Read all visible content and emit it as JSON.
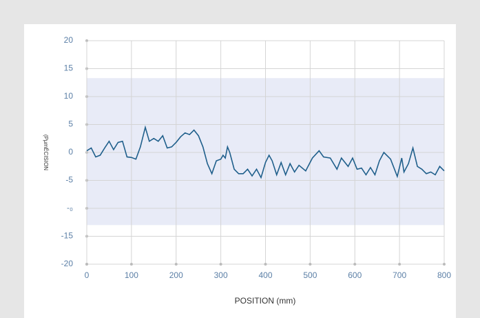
{
  "chart_data": {
    "type": "line",
    "y_label": "(PµmÉCISION",
    "x_label": "POSITION (mm)",
    "x": [
      0,
      10,
      20,
      30,
      40,
      50,
      60,
      70,
      80,
      90,
      100,
      110,
      120,
      131,
      140,
      150,
      160,
      170,
      180,
      190,
      200,
      210,
      220,
      230,
      240,
      250,
      260,
      270,
      280,
      290,
      300,
      305,
      310,
      315,
      320,
      330,
      340,
      350,
      360,
      370,
      380,
      390,
      400,
      408,
      415,
      425,
      435,
      445,
      455,
      465,
      475,
      490,
      505,
      520,
      530,
      545,
      560,
      570,
      585,
      595,
      605,
      615,
      625,
      635,
      645,
      655,
      665,
      680,
      695,
      705,
      710,
      720,
      730,
      740,
      750,
      760,
      770,
      780,
      790,
      800
    ],
    "series": [
      {
        "color": "#1f5f8b",
        "values": [
          0.3,
          0.8,
          -0.8,
          -0.5,
          0.8,
          2.0,
          0.5,
          1.8,
          2.0,
          -0.8,
          -0.9,
          -1.2,
          1.0,
          4.5,
          2.0,
          2.5,
          2.0,
          3.0,
          0.8,
          1.0,
          1.8,
          2.8,
          3.5,
          3.2,
          4.0,
          3.0,
          1.0,
          -2.0,
          -3.8,
          -1.5,
          -1.2,
          -0.5,
          -1.0,
          1.0,
          0.0,
          -3.0,
          -3.8,
          -3.8,
          -3.0,
          -4.2,
          -3.0,
          -4.5,
          -1.8,
          -0.5,
          -1.5,
          -4.0,
          -1.8,
          -4.0,
          -2.0,
          -3.5,
          -2.3,
          -3.3,
          -1.0,
          0.3,
          -0.8,
          -1.0,
          -3.0,
          -1.0,
          -2.5,
          -1.0,
          -3.0,
          -2.8,
          -4.0,
          -2.7,
          -4.0,
          -1.5,
          0.0,
          -1.2,
          -4.3,
          -1.0,
          -3.5,
          -2.0,
          0.8,
          -2.5,
          -3.0,
          -3.8,
          -3.5,
          -4.0,
          -2.5,
          -3.3
        ]
      }
    ],
    "band": {
      "values": [
        -13,
        13.3
      ],
      "color": "#e8ebf7"
    },
    "xlim": [
      0,
      800
    ],
    "xticks": [
      0,
      100,
      200,
      300,
      400,
      500,
      600,
      700,
      800
    ],
    "ylim": [
      -20,
      20
    ],
    "yticks": [
      -20,
      -15,
      {
        "value": -10,
        "label": "-₀"
      },
      -5,
      0,
      5,
      10,
      15,
      20
    ],
    "grid": true
  }
}
